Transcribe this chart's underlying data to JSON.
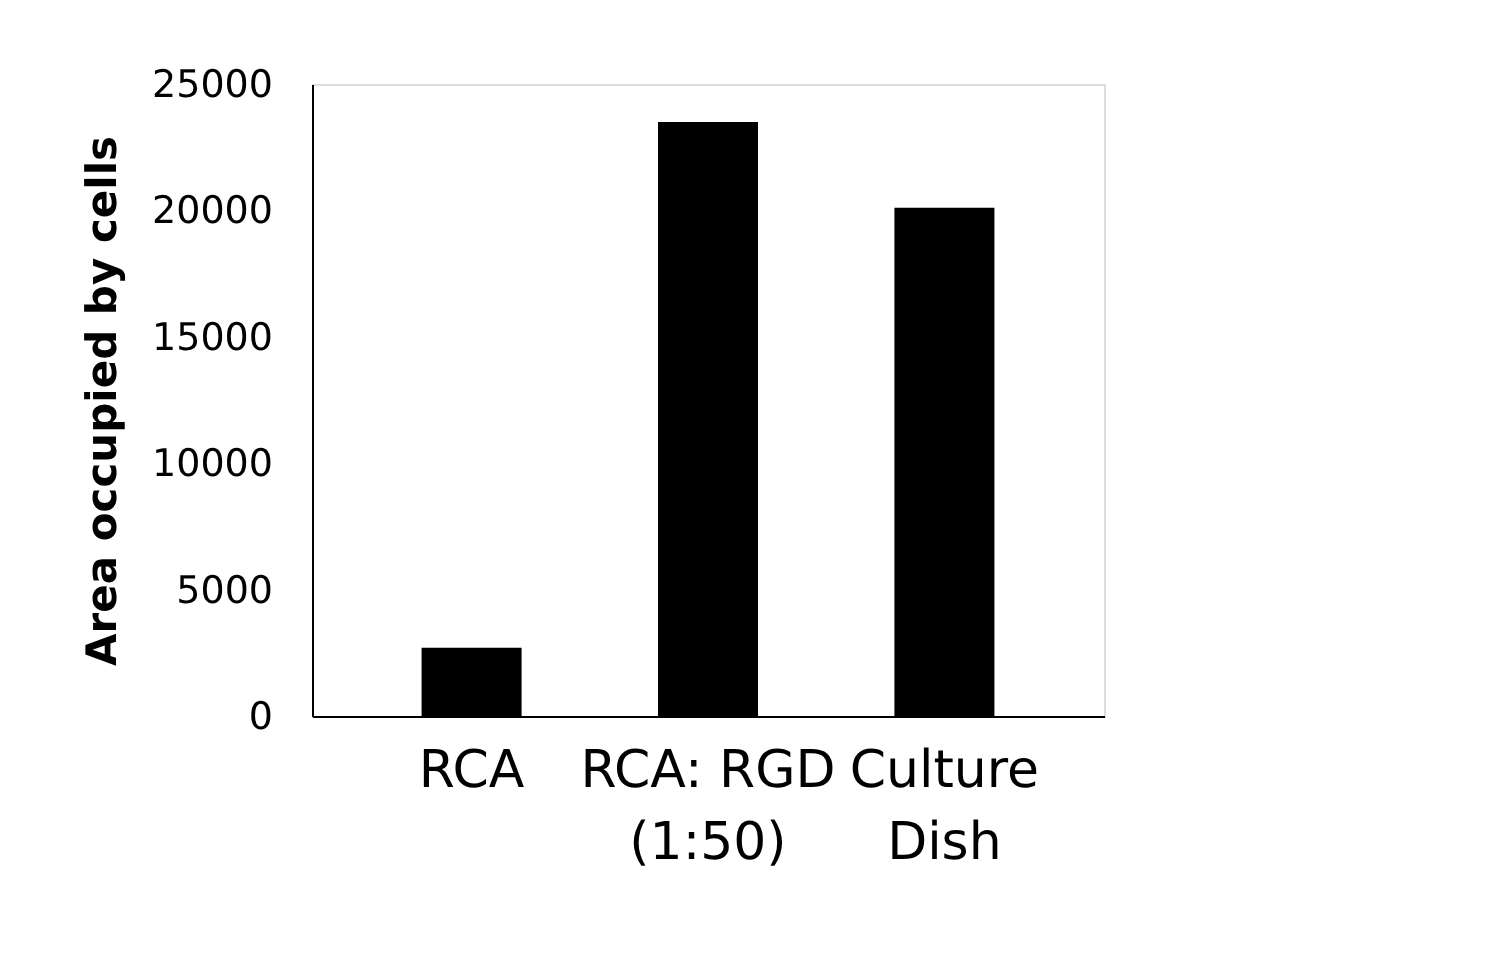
{
  "chart_data": {
    "type": "bar",
    "ylabel": "Area occupied  by cells",
    "categories": [
      "RCA",
      "RCA: RGD (1:50)",
      "Culture Dish"
    ],
    "values": [
      2700,
      23500,
      20100
    ],
    "color": "#000000",
    "ylim": [
      0,
      25000
    ],
    "yticks": [
      0,
      5000,
      10000,
      15000,
      20000,
      25000
    ],
    "grid": false
  }
}
